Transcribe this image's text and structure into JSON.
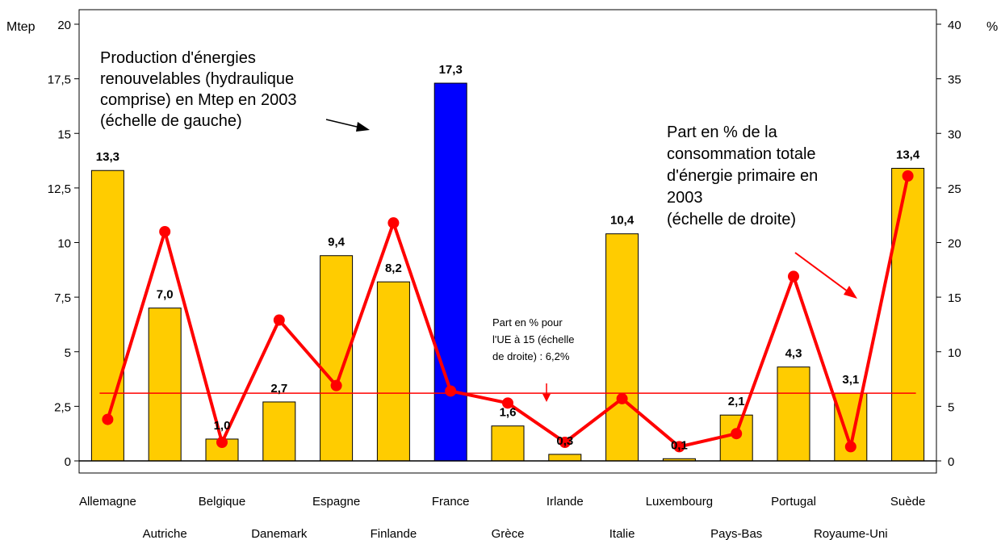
{
  "chart_data": {
    "type": "bar",
    "left_unit": "Mtep",
    "right_unit": "%",
    "categories": [
      "Allemagne",
      "Autriche",
      "Belgique",
      "Danemark",
      "Espagne",
      "Finlande",
      "France",
      "Grèce",
      "Irlande",
      "Italie",
      "Luxembourg",
      "Pays-Bas",
      "Portugal",
      "Royaume-Uni",
      "Suède"
    ],
    "bar_series": {
      "values": [
        13.3,
        7.0,
        1.0,
        2.7,
        9.4,
        8.2,
        17.3,
        1.6,
        0.3,
        10.4,
        0.1,
        2.1,
        4.3,
        3.1,
        13.4
      ],
      "labels": [
        "13,3",
        "7,0",
        "1,0",
        "2,7",
        "9,4",
        "8,2",
        "17,3",
        "1,6",
        "0,3",
        "10,4",
        "0,1",
        "2,1",
        "4,3",
        "3,1",
        "13,4"
      ],
      "color": "#FFCC00",
      "highlight_index": 6,
      "highlight_color": "#0000FF"
    },
    "line_series": {
      "axis": "right",
      "values": [
        3.8,
        21.0,
        1.7,
        12.9,
        6.9,
        21.8,
        6.4,
        5.3,
        1.7,
        5.7,
        1.3,
        2.5,
        16.9,
        1.3,
        26.1
      ],
      "color": "#FF0000"
    },
    "reference_line": {
      "axis": "right",
      "value": 6.2,
      "color": "#FF0000"
    },
    "ylim_left": [
      0,
      20
    ],
    "ylim_right": [
      0,
      40
    ],
    "yticks_left": [
      "0",
      "2,5",
      "5",
      "7,5",
      "10",
      "12,5",
      "15",
      "17,5",
      "20"
    ],
    "yticks_right": [
      "0",
      "5",
      "10",
      "15",
      "20",
      "25",
      "30",
      "35",
      "40"
    ],
    "annotations": {
      "bars_note": [
        "Production d'énergies",
        "renouvelables (hydraulique",
        "comprise) en Mtep en 2003",
        "(échelle de gauche)"
      ],
      "line_note": [
        "Part en % de la",
        "consommation totale",
        "d'énergie primaire en",
        "2003",
        "(échelle de droite)"
      ],
      "eu_note": [
        "Part en % pour",
        "l'UE à 15 (échelle",
        "de droite) : 6,2%"
      ]
    }
  }
}
